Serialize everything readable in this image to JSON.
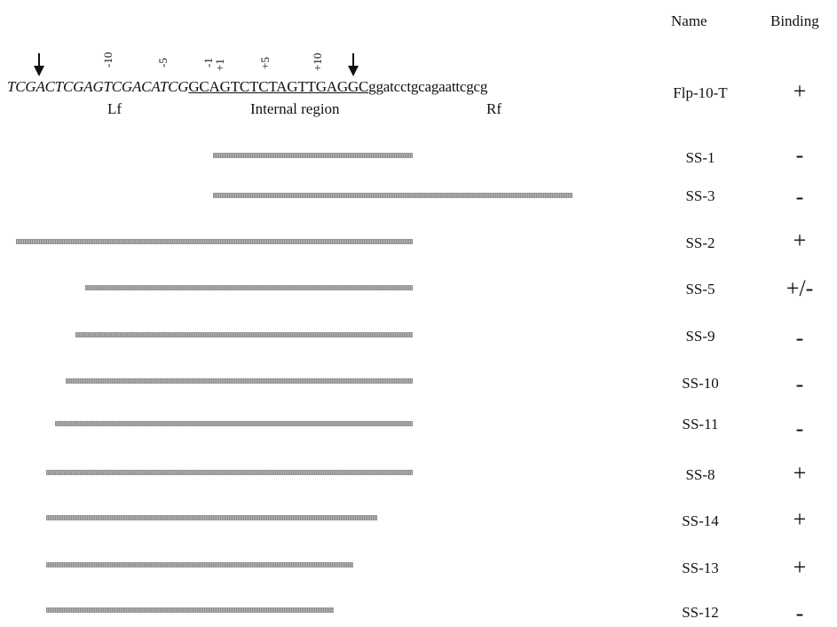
{
  "headers": {
    "name": "Name",
    "binding": "Binding"
  },
  "sequence": {
    "lf_part": "TCGACTCGAGTCGACATCG",
    "internal_part": "GCAGTCTCTAGTTGAGGC",
    "rf_part": "ggatcctgcagaattcgcg",
    "lf_label": "Lf",
    "internal_label": "Internal region",
    "rf_label": "Rf"
  },
  "positions": [
    "-10",
    "-5",
    "-1",
    "+1",
    "+5",
    "+10"
  ],
  "rows": [
    {
      "name": "Flp-10-T",
      "binding": "+"
    },
    {
      "name": "SS-1",
      "binding": "-"
    },
    {
      "name": "SS-3",
      "binding": "-"
    },
    {
      "name": "SS-2",
      "binding": "+"
    },
    {
      "name": "SS-5",
      "binding": "+/-"
    },
    {
      "name": "SS-9",
      "binding": "-"
    },
    {
      "name": "SS-10",
      "binding": "-"
    },
    {
      "name": "SS-11",
      "binding": "-"
    },
    {
      "name": "SS-8",
      "binding": "+"
    },
    {
      "name": "SS-14",
      "binding": "+"
    },
    {
      "name": "SS-13",
      "binding": "+"
    },
    {
      "name": "SS-12",
      "binding": "-"
    }
  ]
}
